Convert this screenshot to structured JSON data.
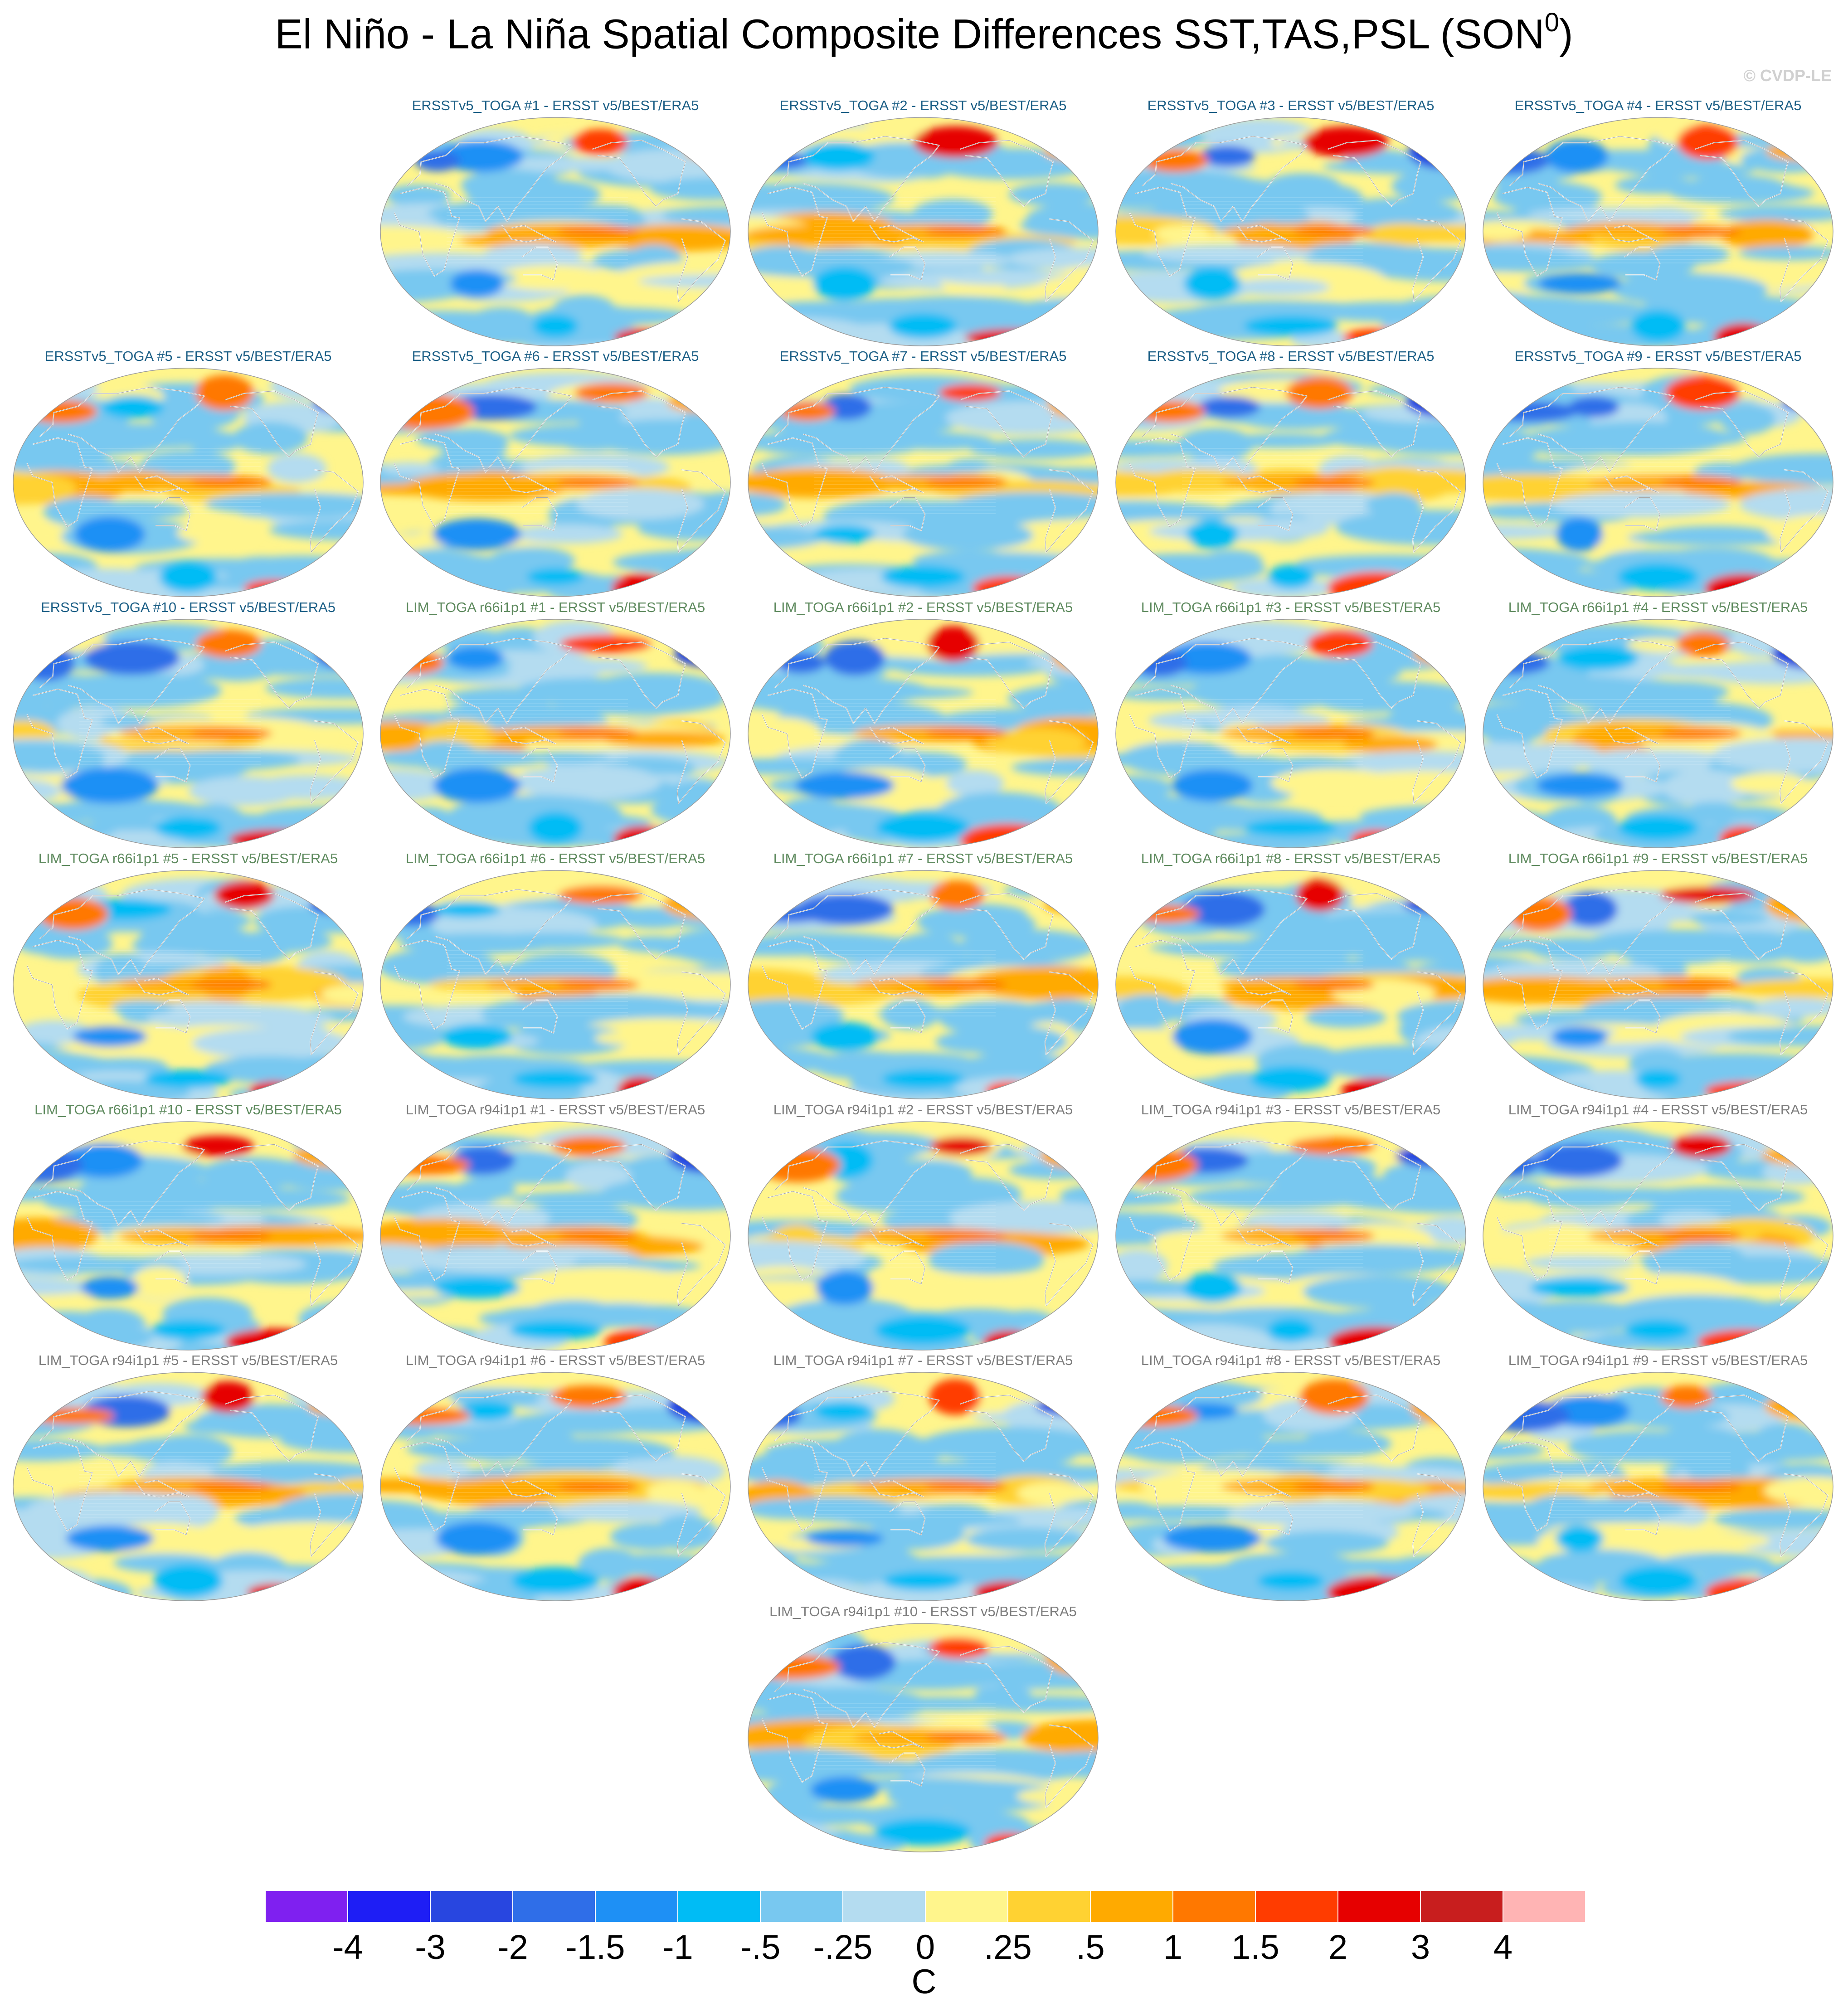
{
  "title": {
    "text": "El Niño - La Niña Spatial Composite Differences SST,TAS,PSL (SON",
    "superscript": "0",
    "close": ")"
  },
  "watermark": "© CVDP-LE",
  "panels": [
    {
      "label": "ERSSTv5_TOGA #1 - ERSST v5/BEST/ERA5",
      "group": "ersst"
    },
    {
      "label": "ERSSTv5_TOGA #2 - ERSST v5/BEST/ERA5",
      "group": "ersst"
    },
    {
      "label": "ERSSTv5_TOGA #3 - ERSST v5/BEST/ERA5",
      "group": "ersst"
    },
    {
      "label": "ERSSTv5_TOGA #4 - ERSST v5/BEST/ERA5",
      "group": "ersst"
    },
    {
      "label": "ERSSTv5_TOGA #5 - ERSST v5/BEST/ERA5",
      "group": "ersst"
    },
    {
      "label": "ERSSTv5_TOGA #6 - ERSST v5/BEST/ERA5",
      "group": "ersst"
    },
    {
      "label": "ERSSTv5_TOGA #7 - ERSST v5/BEST/ERA5",
      "group": "ersst"
    },
    {
      "label": "ERSSTv5_TOGA #8 - ERSST v5/BEST/ERA5",
      "group": "ersst"
    },
    {
      "label": "ERSSTv5_TOGA #9 - ERSST v5/BEST/ERA5",
      "group": "ersst"
    },
    {
      "label": "ERSSTv5_TOGA #10 - ERSST v5/BEST/ERA5",
      "group": "ersst"
    },
    {
      "label": "LIM_TOGA r66i1p1 #1 - ERSST v5/BEST/ERA5",
      "group": "r66"
    },
    {
      "label": "LIM_TOGA r66i1p1 #2 - ERSST v5/BEST/ERA5",
      "group": "r66"
    },
    {
      "label": "LIM_TOGA r66i1p1 #3 - ERSST v5/BEST/ERA5",
      "group": "r66"
    },
    {
      "label": "LIM_TOGA r66i1p1 #4 - ERSST v5/BEST/ERA5",
      "group": "r66"
    },
    {
      "label": "LIM_TOGA r66i1p1 #5 - ERSST v5/BEST/ERA5",
      "group": "r66"
    },
    {
      "label": "LIM_TOGA r66i1p1 #6 - ERSST v5/BEST/ERA5",
      "group": "r66"
    },
    {
      "label": "LIM_TOGA r66i1p1 #7 - ERSST v5/BEST/ERA5",
      "group": "r66"
    },
    {
      "label": "LIM_TOGA r66i1p1 #8 - ERSST v5/BEST/ERA5",
      "group": "r66"
    },
    {
      "label": "LIM_TOGA r66i1p1 #9 - ERSST v5/BEST/ERA5",
      "group": "r66"
    },
    {
      "label": "LIM_TOGA r66i1p1 #10 - ERSST v5/BEST/ERA5",
      "group": "r66"
    },
    {
      "label": "LIM_TOGA r94i1p1 #1 - ERSST v5/BEST/ERA5",
      "group": "r94"
    },
    {
      "label": "LIM_TOGA r94i1p1 #2 - ERSST v5/BEST/ERA5",
      "group": "r94"
    },
    {
      "label": "LIM_TOGA r94i1p1 #3 - ERSST v5/BEST/ERA5",
      "group": "r94"
    },
    {
      "label": "LIM_TOGA r94i1p1 #4 - ERSST v5/BEST/ERA5",
      "group": "r94"
    },
    {
      "label": "LIM_TOGA r94i1p1 #5 - ERSST v5/BEST/ERA5",
      "group": "r94"
    },
    {
      "label": "LIM_TOGA r94i1p1 #6 - ERSST v5/BEST/ERA5",
      "group": "r94"
    },
    {
      "label": "LIM_TOGA r94i1p1 #7 - ERSST v5/BEST/ERA5",
      "group": "r94"
    },
    {
      "label": "LIM_TOGA r94i1p1 #8 - ERSST v5/BEST/ERA5",
      "group": "r94"
    },
    {
      "label": "LIM_TOGA r94i1p1 #9 - ERSST v5/BEST/ERA5",
      "group": "r94"
    },
    {
      "label": "LIM_TOGA r94i1p1 #10 - ERSST v5/BEST/ERA5",
      "group": "r94"
    }
  ],
  "group_colors": {
    "ersst": "#1c5f86",
    "r66": "#5e8a5e",
    "r94": "#7d7d7d"
  },
  "colorbar": {
    "colors": [
      "#7f20f0",
      "#1e1ef5",
      "#2846e0",
      "#2f6ee8",
      "#1e90f5",
      "#00bcf5",
      "#78c8f0",
      "#b4dcf0",
      "#fff58c",
      "#ffd232",
      "#ffaa00",
      "#ff7800",
      "#ff3c00",
      "#e60000",
      "#c81e1e",
      "#ffb4b4"
    ],
    "ticks": [
      "-4",
      "-3",
      "-2",
      "-1.5",
      "-1",
      "-.5",
      "-.25",
      "0",
      ".25",
      ".5",
      "1",
      "1.5",
      "2",
      "3",
      "4"
    ],
    "units": "C"
  }
}
